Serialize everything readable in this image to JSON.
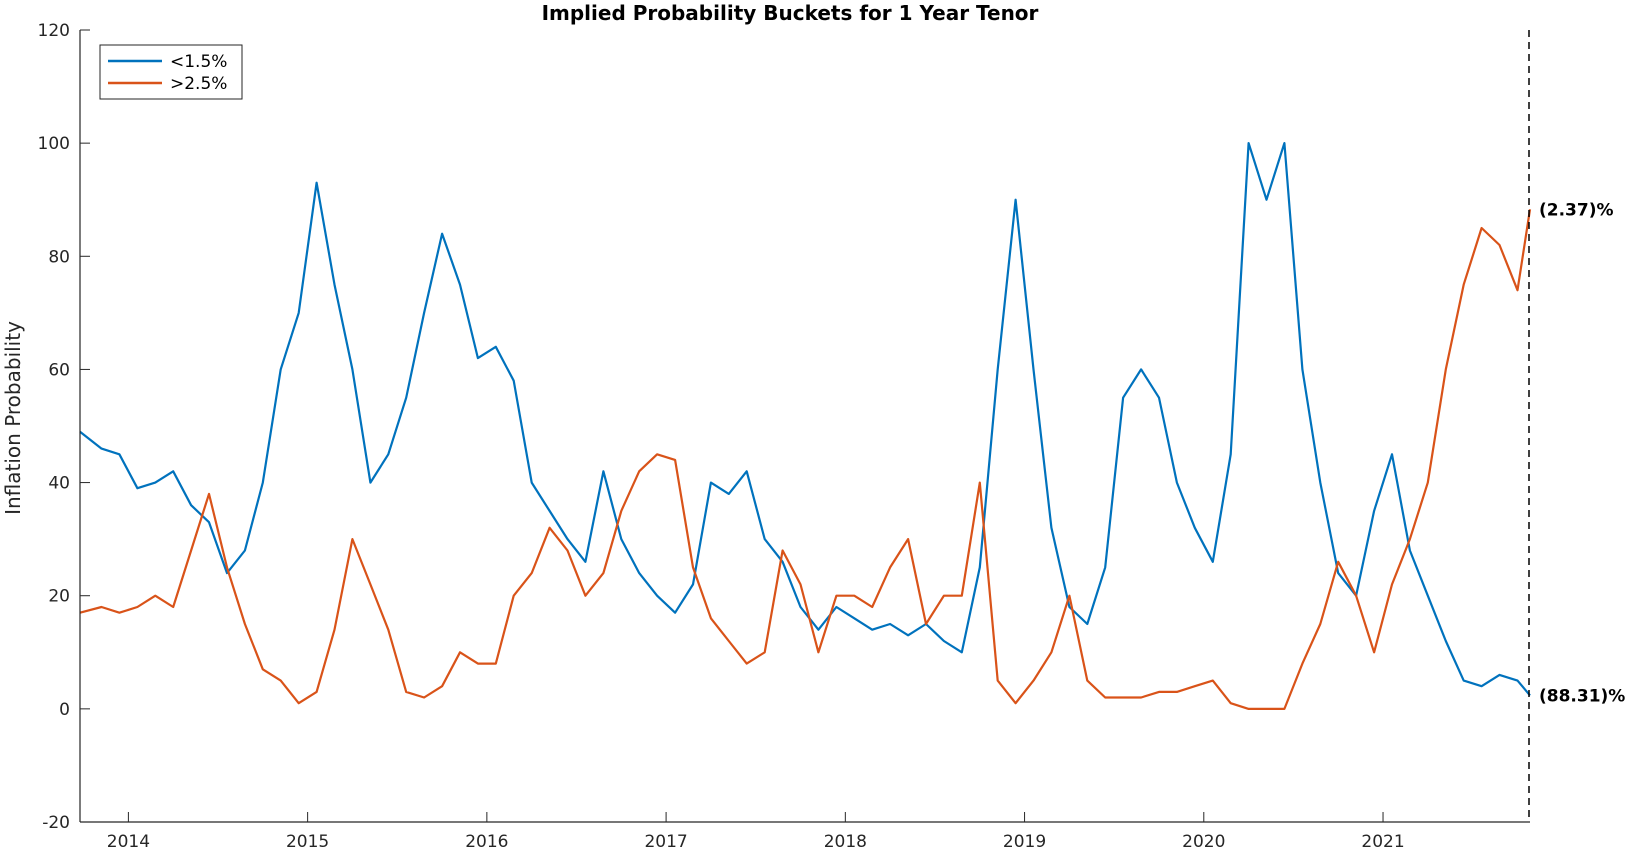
{
  "chart_data": {
    "type": "line",
    "title": "Implied Probability Buckets for 1 Year Tenor",
    "xlabel": "",
    "ylabel": "Inflation Probability",
    "xlim": [
      2013.73,
      2021.82
    ],
    "ylim": [
      -20,
      120
    ],
    "x_ticks": [
      2014,
      2015,
      2016,
      2017,
      2018,
      2019,
      2020,
      2021
    ],
    "x_tick_labels": [
      "2014",
      "2015",
      "2016",
      "2017",
      "2018",
      "2019",
      "2020",
      "2021"
    ],
    "y_ticks": [
      -20,
      0,
      20,
      40,
      60,
      80,
      100,
      120
    ],
    "y_tick_labels": [
      "-20",
      "0",
      "20",
      "40",
      "60",
      "80",
      "100",
      "120"
    ],
    "grid": false,
    "legend_position": "top-left",
    "vline_x": 2021.82,
    "x": [
      2013.73,
      2013.85,
      2013.95,
      2014.05,
      2014.15,
      2014.25,
      2014.35,
      2014.45,
      2014.55,
      2014.65,
      2014.75,
      2014.85,
      2014.95,
      2015.05,
      2015.15,
      2015.25,
      2015.35,
      2015.45,
      2015.55,
      2015.65,
      2015.75,
      2015.85,
      2015.95,
      2016.05,
      2016.15,
      2016.25,
      2016.35,
      2016.45,
      2016.55,
      2016.65,
      2016.75,
      2016.85,
      2016.95,
      2017.05,
      2017.15,
      2017.25,
      2017.35,
      2017.45,
      2017.55,
      2017.65,
      2017.75,
      2017.85,
      2017.95,
      2018.05,
      2018.15,
      2018.25,
      2018.35,
      2018.45,
      2018.55,
      2018.65,
      2018.75,
      2018.85,
      2018.95,
      2019.05,
      2019.15,
      2019.25,
      2019.35,
      2019.45,
      2019.55,
      2019.65,
      2019.75,
      2019.85,
      2019.95,
      2020.05,
      2020.15,
      2020.25,
      2020.35,
      2020.45,
      2020.55,
      2020.65,
      2020.75,
      2020.85,
      2020.95,
      2021.05,
      2021.15,
      2021.25,
      2021.35,
      2021.45,
      2021.55,
      2021.65,
      2021.75,
      2021.82
    ],
    "series": [
      {
        "name": "<1.5%",
        "color": "#0072BD",
        "values": [
          49,
          46,
          45,
          39,
          40,
          42,
          36,
          33,
          24,
          28,
          40,
          60,
          70,
          93,
          75,
          60,
          40,
          45,
          55,
          70,
          84,
          75,
          62,
          64,
          58,
          40,
          35,
          30,
          26,
          42,
          30,
          24,
          20,
          17,
          22,
          40,
          38,
          42,
          30,
          26,
          18,
          14,
          18,
          16,
          14,
          15,
          13,
          15,
          12,
          10,
          25,
          60,
          90,
          60,
          32,
          18,
          15,
          25,
          55,
          60,
          55,
          40,
          32,
          26,
          45,
          100,
          90,
          100,
          60,
          40,
          24,
          20,
          35,
          45,
          28,
          20,
          12,
          5,
          4,
          6,
          5,
          2.37
        ]
      },
      {
        "name": ">2.5%",
        "color": "#D95319",
        "values": [
          17,
          18,
          17,
          18,
          20,
          18,
          28,
          38,
          25,
          15,
          7,
          5,
          1,
          3,
          14,
          30,
          22,
          14,
          3,
          2,
          4,
          10,
          8,
          8,
          20,
          24,
          32,
          28,
          20,
          24,
          35,
          42,
          45,
          44,
          25,
          16,
          12,
          8,
          10,
          28,
          22,
          10,
          20,
          20,
          18,
          25,
          30,
          15,
          20,
          20,
          40,
          5,
          1,
          5,
          10,
          20,
          5,
          2,
          2,
          2,
          3,
          3,
          4,
          5,
          1,
          0,
          0,
          0,
          8,
          15,
          26,
          20,
          10,
          22,
          30,
          40,
          60,
          75,
          85,
          82,
          74,
          88.31
        ]
      }
    ],
    "annotations": [
      "(88.31)%",
      "(2.37)%"
    ]
  }
}
